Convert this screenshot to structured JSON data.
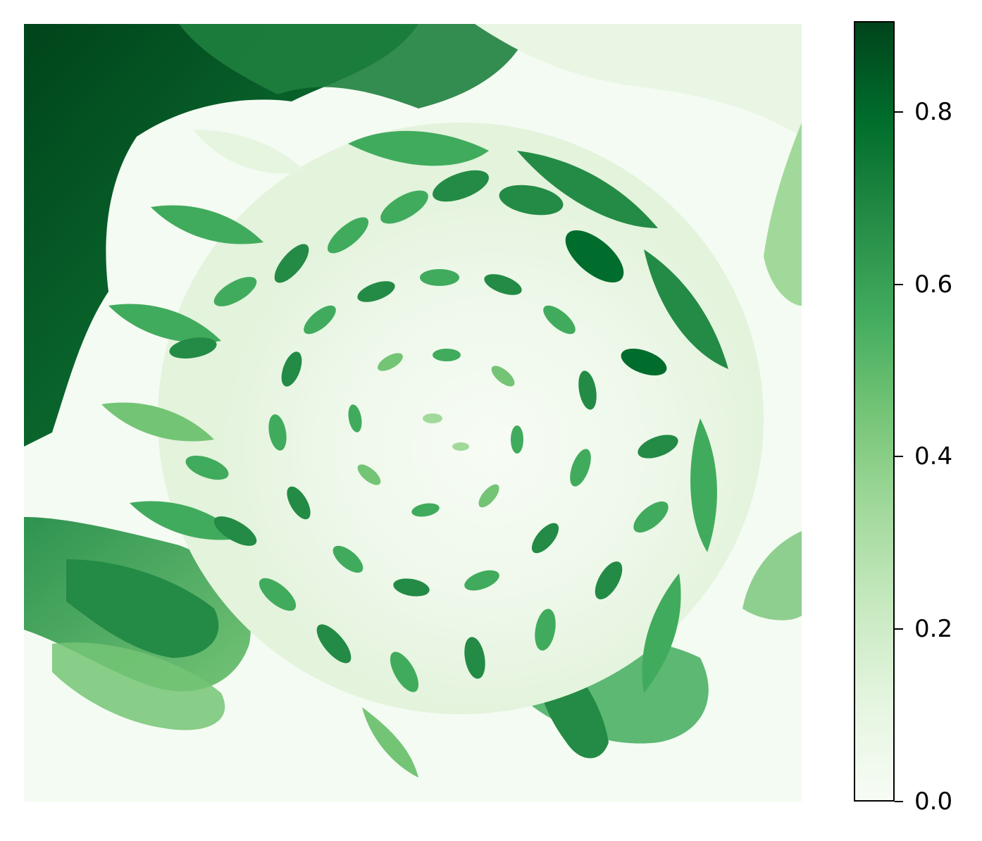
{
  "colormap": {
    "name": "Greens",
    "stops": [
      "#f7fcf5",
      "#e5f5e0",
      "#c7e9c0",
      "#a1d99b",
      "#74c476",
      "#41ab5d",
      "#238b45",
      "#006d2c",
      "#00441b"
    ],
    "vmin": 0.0,
    "vmax": 0.9
  },
  "colorbar": {
    "ticks": [
      {
        "value": 0.0,
        "label": "0.0"
      },
      {
        "value": 0.2,
        "label": "0.2"
      },
      {
        "value": 0.4,
        "label": "0.4"
      },
      {
        "value": 0.6,
        "label": "0.6"
      },
      {
        "value": 0.8,
        "label": "0.8"
      }
    ]
  },
  "image": {
    "subject": "sunflower-inverted-greens",
    "background_color": "#f4fbf2"
  }
}
